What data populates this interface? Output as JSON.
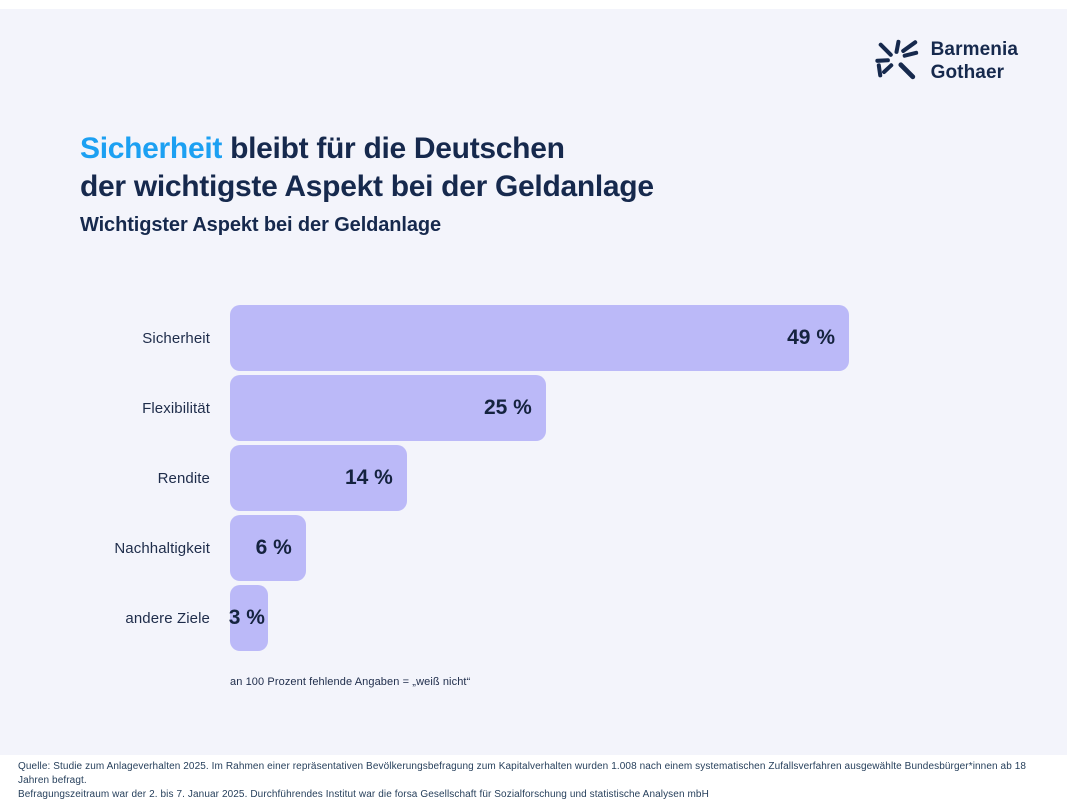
{
  "logo": {
    "line1": "Barmenia",
    "line2": "Gothaer"
  },
  "title": {
    "highlight": "Sicherheit",
    "line1_rest": " bleibt für die Deutschen",
    "line2": "der wichtigste Aspekt bei der Geldanlage"
  },
  "subtitle": "Wichtigster Aspekt bei der Geldanlage",
  "chart_data": {
    "type": "bar",
    "orientation": "horizontal",
    "title": "Wichtigster Aspekt bei der Geldanlage",
    "categories": [
      "Sicherheit",
      "Flexibilität",
      "Rendite",
      "Nachhaltigkeit",
      "andere Ziele"
    ],
    "values": [
      49,
      25,
      14,
      6,
      3
    ],
    "value_labels": [
      "49 %",
      "25 %",
      "14 %",
      "6 %",
      "3 %"
    ],
    "unit": "%",
    "max_value": 49,
    "axis_range": [
      0,
      49
    ],
    "grid": false,
    "legend": false,
    "bar_color": "#bbb9f8",
    "footnote": "an 100 Prozent fehlende Angaben = „weiß nicht“"
  },
  "source": {
    "line1": "Quelle: Studie zum Anlageverhalten 2025. Im Rahmen einer repräsentativen Bevölkerungsbefragung zum Kapitalverhalten wurden 1.008 nach einem systematischen Zufallsverfahren ausgewählte Bundesbürger*innen ab 18 Jahren befragt.",
    "line2": "Befragungszeitraum war der 2. bis 7. Januar 2025. Durchführendes Institut war die forsa Gesellschaft für Sozialforschung und statistische Analysen mbH"
  },
  "colors": {
    "accent_blue": "#1ca0f2",
    "navy": "#16294d",
    "bar_lavender": "#bbb9f8",
    "card_background": "#f3f4fb",
    "page_background": "#ffffff"
  }
}
